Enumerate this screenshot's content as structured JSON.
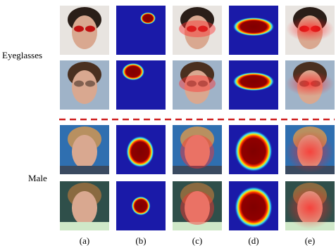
{
  "row_labels": [
    "Eyeglasses",
    "Male"
  ],
  "column_labels": [
    "(a)",
    "(b)",
    "(c)",
    "(d)",
    "(e)"
  ]
}
